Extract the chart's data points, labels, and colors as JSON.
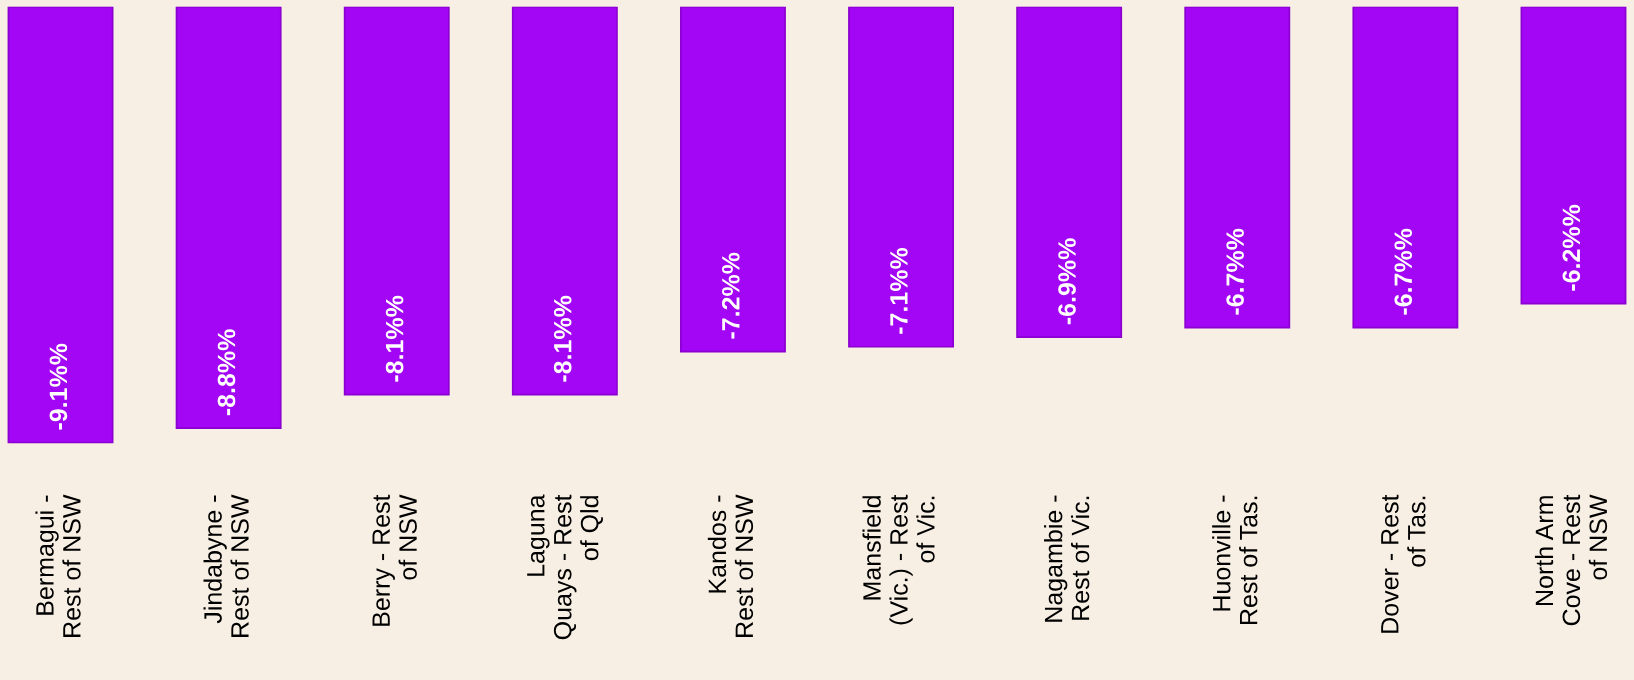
{
  "chart_data": {
    "type": "bar",
    "categories": [
      "Bermagui -\nRest of NSW",
      "Jindabyne -\nRest of NSW",
      "Berry - Rest\nof NSW",
      "Laguna\nQuays - Rest\nof Qld",
      "Kandos -\nRest of NSW",
      "Mansfield\n(Vic.) - Rest\nof Vic.",
      "Nagambie -\nRest of Vic.",
      "Huonville -\nRest of Tas.",
      "Dover - Rest\nof Tas.",
      "North Arm\nCove - Rest\nof NSW"
    ],
    "series": [
      {
        "color": "#a305f5",
        "values": [
          -9.1,
          -8.8,
          -8.1,
          -8.1,
          -7.2,
          -7.1,
          -6.9,
          -6.7,
          -6.7,
          -6.2
        ],
        "value_labels": [
          "-9.1%%",
          "-8.8%%",
          "-8.1%%",
          "-8.1%%",
          "-7.2%%",
          "-7.1%%",
          "-6.9%%",
          "-6.7%%",
          "-6.7%%",
          "-6.2%%"
        ]
      }
    ],
    "tick_labels": "x",
    "grid": false,
    "legend": false
  }
}
